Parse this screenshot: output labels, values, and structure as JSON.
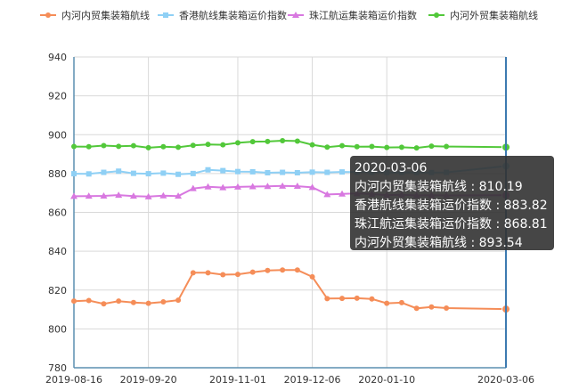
{
  "chart_data": {
    "type": "line",
    "x": [
      "2019-08-16",
      "2019-08-23",
      "2019-08-30",
      "2019-09-06",
      "2019-09-13",
      "2019-09-20",
      "2019-09-27",
      "2019-10-04",
      "2019-10-11",
      "2019-10-18",
      "2019-10-25",
      "2019-11-01",
      "2019-11-08",
      "2019-11-15",
      "2019-11-22",
      "2019-11-29",
      "2019-12-06",
      "2019-12-13",
      "2019-12-20",
      "2019-12-27",
      "2020-01-03",
      "2020-01-10",
      "2020-01-17",
      "2020-01-24",
      "2020-01-31",
      "2020-02-07",
      "2020-03-06"
    ],
    "x_tick_labels": [
      "2019-08-16",
      "2019-09-20",
      "2019-11-01",
      "2019-12-06",
      "2020-01-10",
      "2020-03-06"
    ],
    "ylim": [
      780,
      940
    ],
    "y_ticks": [
      780,
      800,
      820,
      840,
      860,
      880,
      900,
      920,
      940
    ],
    "grid": true,
    "legend_position": "top",
    "series": [
      {
        "name": "内河内贸集装箱航线",
        "color": "#f58d58",
        "marker": "circle",
        "values": [
          814.3,
          814.6,
          812.9,
          814.3,
          813.6,
          813.2,
          813.9,
          814.8,
          828.9,
          828.9,
          827.9,
          828.1,
          829.2,
          830.1,
          830.3,
          830.3,
          826.8,
          815.6,
          815.7,
          815.8,
          815.4,
          813.2,
          813.5,
          810.6,
          811.3,
          810.7,
          810.19
        ]
      },
      {
        "name": "香港航线集装箱运价指数",
        "color": "#8fd0f5",
        "marker": "square",
        "values": [
          879.9,
          879.8,
          880.6,
          881.2,
          880.1,
          879.9,
          880.2,
          879.6,
          880.0,
          881.9,
          881.5,
          881.0,
          880.9,
          880.4,
          880.6,
          880.4,
          880.7,
          880.6,
          880.8,
          880.7,
          880.6,
          880.5,
          880.6,
          880.5,
          880.5,
          880.6,
          883.82
        ]
      },
      {
        "name": "珠江航运集装箱运价指数",
        "color": "#d878e0",
        "marker": "triangle",
        "values": [
          868.3,
          868.4,
          868.5,
          868.9,
          868.4,
          868.1,
          868.6,
          868.4,
          872.3,
          873.2,
          872.8,
          873.1,
          873.3,
          873.4,
          873.6,
          873.5,
          872.9,
          869.2,
          869.5,
          869.7,
          869.4,
          868.9,
          869.1,
          868.7,
          868.8,
          868.7,
          868.81
        ]
      },
      {
        "name": "内河外贸集装箱航线",
        "color": "#52c83a",
        "marker": "circle",
        "values": [
          893.9,
          893.8,
          894.4,
          894.0,
          894.3,
          893.3,
          893.8,
          893.5,
          894.5,
          895.0,
          894.8,
          895.8,
          896.4,
          896.5,
          896.9,
          896.7,
          894.8,
          893.6,
          894.3,
          893.8,
          893.9,
          893.4,
          893.5,
          893.2,
          894.1,
          893.9,
          893.54
        ]
      }
    ]
  },
  "tooltip": {
    "date": "2020-03-06",
    "rows": [
      {
        "name": "内河内贸集装箱航线",
        "value": "810.19"
      },
      {
        "name": "香港航线集装箱运价指数",
        "value": "883.82"
      },
      {
        "name": "珠江航运集装箱运价指数",
        "value": "868.81"
      },
      {
        "name": "内河外贸集装箱航线",
        "value": "893.54"
      }
    ]
  },
  "colors": {
    "axis": "#5b8fb0",
    "grid": "#d9d9d9",
    "cursor_line": "#3d7ab0",
    "tooltip_bg": "#323232"
  }
}
